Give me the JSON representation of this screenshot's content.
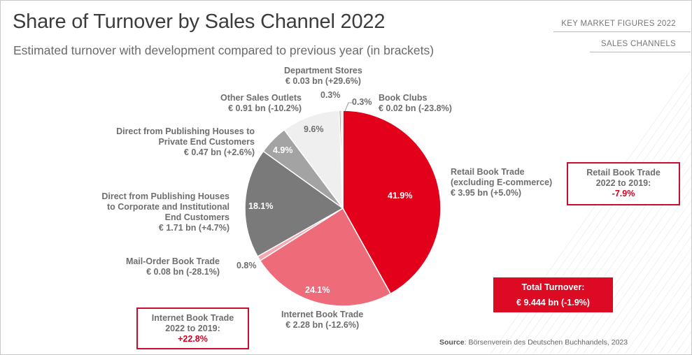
{
  "title": "Share of Turnover by Sales Channel 2022",
  "subtitle": "Estimated turnover with development compared to previous year (in brackets)",
  "nav": {
    "item1": "KEY MARKET FIGURES 2022",
    "item2": "SALES CHANNELS"
  },
  "colors": {
    "red": "#e2001a",
    "pink": "#ee6b7a",
    "dark_gray": "#7a7a7a",
    "mid_gray": "#a3a3a3",
    "light_gray": "#efefef",
    "box_border": "#c8102e"
  },
  "chart_data": {
    "type": "pie",
    "title": "Share of Turnover by Sales Channel 2022",
    "slices": [
      {
        "name": "Retail Book Trade (excluding E-commerce)",
        "value": 41.9,
        "pct_label": "41.9%",
        "label_lines": [
          "Retail Book Trade",
          "(excluding E-commerce)"
        ],
        "amount": "€ 3.95 bn (+5.0%)",
        "color": "#e2001a"
      },
      {
        "name": "Internet Book Trade",
        "value": 24.1,
        "pct_label": "24.1%",
        "label_lines": [
          "Internet Book Trade"
        ],
        "amount": "€ 2.28 bn (-12.6%)",
        "color": "#ee6b7a"
      },
      {
        "name": "Mail-Order Book Trade",
        "value": 0.8,
        "pct_label": "0.8%",
        "label_lines": [
          "Mail-Order Book Trade"
        ],
        "amount": "€ 0.08 bn (-28.1%)",
        "color": "#f4a8b1"
      },
      {
        "name": "Direct from Publishing Houses to Corporate and Institutional End Customers",
        "value": 18.1,
        "pct_label": "18.1%",
        "label_lines": [
          "Direct from Publishing Houses",
          "to Corporate and Institutional",
          "End Customers"
        ],
        "amount": "€ 1.71 bn (+4.7%)",
        "color": "#7a7a7a"
      },
      {
        "name": "Direct from Publishing Houses to Private End Customers",
        "value": 4.9,
        "pct_label": "4.9%",
        "label_lines": [
          "Direct from Publishing Houses to",
          "Private End Customers"
        ],
        "amount": "€ 0.47 bn (+2.6%)",
        "color": "#a3a3a3"
      },
      {
        "name": "Other Sales Outlets",
        "value": 9.6,
        "pct_label": "9.6%",
        "label_lines": [
          "Other Sales Outlets"
        ],
        "amount": "€ 0.91 bn (-10.2%)",
        "color": "#efefef"
      },
      {
        "name": "Department Stores",
        "value": 0.3,
        "pct_label": "0.3%",
        "label_lines": [
          "Department Stores"
        ],
        "amount": "€ 0.03 bn (+29.6%)",
        "color": "#8e8e8e"
      },
      {
        "name": "Book Clubs",
        "value": 0.3,
        "pct_label": "0.3%",
        "label_lines": [
          "Book Clubs"
        ],
        "amount": "€ 0.02 bn (-23.8%)",
        "color": "#d9d9d9"
      }
    ]
  },
  "callouts": {
    "retail": {
      "line1": "Retail Book Trade",
      "line2": "2022 to 2019:",
      "value": "-7.9%"
    },
    "internet": {
      "line1": "Internet Book Trade",
      "line2": "2022 to 2019:",
      "value": "+22.8%"
    }
  },
  "total": {
    "label": "Total Turnover:",
    "value": "€ 9.444 bn (-1.9%)"
  },
  "source": {
    "label": "Source",
    "text": ": Börsenverein des Deutschen Buchhandels, 2023"
  }
}
